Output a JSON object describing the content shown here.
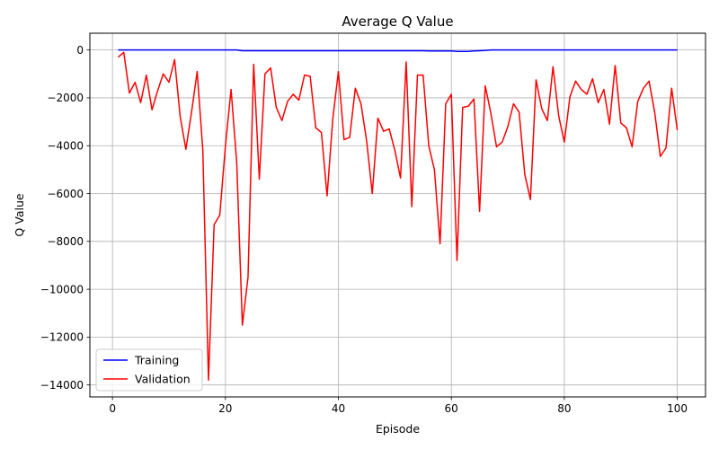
{
  "chart_data": {
    "type": "line",
    "title": "Average Q Value",
    "xlabel": "Episode",
    "ylabel": "Q Value",
    "xlim": [
      -4,
      105
    ],
    "ylim": [
      -14500,
      700
    ],
    "xticks": [
      0,
      20,
      40,
      60,
      80,
      100
    ],
    "yticks": [
      0,
      -2000,
      -4000,
      -6000,
      -8000,
      -10000,
      -12000,
      -14000
    ],
    "grid": true,
    "legend_position": "lower-left",
    "x": [
      1,
      2,
      3,
      4,
      5,
      6,
      7,
      8,
      9,
      10,
      11,
      12,
      13,
      14,
      15,
      16,
      17,
      18,
      19,
      20,
      21,
      22,
      23,
      24,
      25,
      26,
      27,
      28,
      29,
      30,
      31,
      32,
      33,
      34,
      35,
      36,
      37,
      38,
      39,
      40,
      41,
      42,
      43,
      44,
      45,
      46,
      47,
      48,
      49,
      50,
      51,
      52,
      53,
      54,
      55,
      56,
      57,
      58,
      59,
      60,
      61,
      62,
      63,
      64,
      65,
      66,
      67,
      68,
      69,
      70,
      71,
      72,
      73,
      74,
      75,
      76,
      77,
      78,
      79,
      80,
      81,
      82,
      83,
      84,
      85,
      86,
      87,
      88,
      89,
      90,
      91,
      92,
      93,
      94,
      95,
      96,
      97,
      98,
      99,
      100
    ],
    "series": [
      {
        "name": "Training",
        "color": "#0000ff",
        "values": [
          0,
          0,
          0,
          0,
          0,
          0,
          0,
          0,
          0,
          0,
          0,
          0,
          0,
          0,
          0,
          0,
          0,
          0,
          0,
          0,
          0,
          0,
          -30,
          -30,
          -30,
          -30,
          -30,
          -30,
          -30,
          -30,
          -30,
          -30,
          -30,
          -30,
          -30,
          -30,
          -30,
          -30,
          -30,
          -30,
          -30,
          -30,
          -30,
          -30,
          -30,
          -30,
          -30,
          -30,
          -30,
          -30,
          -30,
          -30,
          -30,
          -30,
          -30,
          -40,
          -40,
          -40,
          -40,
          -40,
          -60,
          -60,
          -60,
          -40,
          -30,
          -20,
          0,
          0,
          0,
          0,
          0,
          0,
          0,
          0,
          0,
          0,
          0,
          0,
          0,
          0,
          0,
          0,
          0,
          0,
          0,
          0,
          0,
          0,
          0,
          0,
          0,
          0,
          0,
          0,
          0,
          0,
          0,
          0,
          0,
          0
        ]
      },
      {
        "name": "Validation",
        "color": "#ff0000",
        "values": [
          -300,
          -100,
          -1800,
          -1350,
          -2200,
          -1050,
          -2500,
          -1700,
          -1000,
          -1350,
          -400,
          -2800,
          -4150,
          -2600,
          -900,
          -4200,
          -13800,
          -7300,
          -6900,
          -4000,
          -1650,
          -4700,
          -11500,
          -9500,
          -600,
          -5400,
          -1000,
          -750,
          -2400,
          -2950,
          -2150,
          -1850,
          -2100,
          -1050,
          -1100,
          -3250,
          -3450,
          -6100,
          -2900,
          -900,
          -3750,
          -3650,
          -1600,
          -2250,
          -3800,
          -6000,
          -2850,
          -3400,
          -3300,
          -4200,
          -5350,
          -500,
          -6550,
          -1050,
          -1050,
          -4000,
          -5000,
          -8100,
          -2250,
          -1850,
          -8800,
          -2400,
          -2350,
          -2050,
          -6750,
          -1500,
          -2650,
          -4050,
          -3850,
          -3200,
          -2250,
          -2600,
          -5200,
          -6250,
          -1250,
          -2450,
          -2950,
          -700,
          -2750,
          -3850,
          -1950,
          -1300,
          -1650,
          -1850,
          -1200,
          -2200,
          -1650,
          -3100,
          -650,
          -3050,
          -3250,
          -4050,
          -2150,
          -1600,
          -1300,
          -2600,
          -4450,
          -4100,
          -1600,
          -3350
        ]
      }
    ]
  }
}
